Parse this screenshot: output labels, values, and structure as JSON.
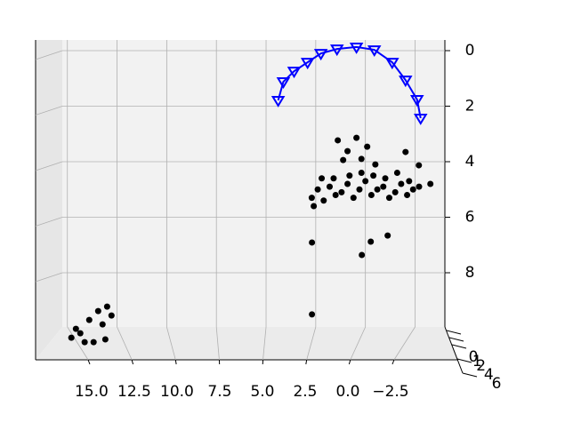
{
  "chart_data": {
    "type": "scatter3d",
    "xlim": [
      16.6,
      -4.0
    ],
    "xticks": [
      {
        "value": 15,
        "label": "15.0"
      },
      {
        "value": 12.5,
        "label": "12.5"
      },
      {
        "value": 10,
        "label": "10.0"
      },
      {
        "value": 7.5,
        "label": "7.5"
      },
      {
        "value": 5,
        "label": "5.0"
      },
      {
        "value": 2.5,
        "label": "2.5"
      },
      {
        "value": 0,
        "label": "0.0"
      },
      {
        "value": -2.5,
        "label": "−2.5"
      }
    ],
    "ylim": [
      -0.4,
      11.0
    ],
    "yticks": [
      0,
      2,
      4,
      6,
      8
    ],
    "zlim": [
      0,
      6
    ],
    "zticks": [
      0,
      1,
      2,
      4,
      6
    ],
    "grid": true,
    "series": [
      {
        "color": "#0000ff",
        "style": "line",
        "x": [
          4.39,
          4.13,
          3.59,
          2.91,
          2.24,
          1.43,
          0.45,
          -0.45,
          -1.35,
          -2.02,
          -2.6,
          -2.78
        ],
        "values": [
          1.79,
          1.12,
          0.74,
          0.42,
          0.1,
          -0.06,
          -0.13,
          -0.03,
          0.42,
          1.06,
          1.76,
          2.43
        ]
      },
      {
        "color": "#000000",
        "style": "scatter",
        "x": [
          2.7,
          2.4,
          2.1,
          1.8,
          1.5,
          1.2,
          0.9,
          0.6,
          0.3,
          0,
          -0.3,
          -0.6,
          -0.9,
          -1.2,
          -1.5,
          -1.8,
          -2.1,
          -2.4,
          -2.7,
          1.6,
          0.8,
          0.2,
          -0.4,
          -1.0,
          -1.6,
          -2.2,
          2.2,
          2.6,
          0.45,
          0.9,
          -0.09,
          1.12,
          0.2,
          -0.5,
          1.39,
          -2.02,
          -2.69,
          -3.27,
          2.69,
          2.69,
          -0.27,
          -1.12,
          0.18,
          14.8,
          14.35,
          13.9,
          13.45,
          13.0,
          13.23,
          13.68,
          14.13,
          12.78,
          14.57,
          13.09
        ],
        "values": [
          5.3,
          5.0,
          5.4,
          4.9,
          5.2,
          5.1,
          4.8,
          5.3,
          5.0,
          4.7,
          5.2,
          5.0,
          4.9,
          5.3,
          5.1,
          4.8,
          5.2,
          5.0,
          4.9,
          4.6,
          4.5,
          4.4,
          4.5,
          4.6,
          4.4,
          4.7,
          4.6,
          5.6,
          3.14,
          3.62,
          3.46,
          3.94,
          3.9,
          4.1,
          3.23,
          3.65,
          4.13,
          4.8,
          6.91,
          9.5,
          6.88,
          6.66,
          7.36,
          10.34,
          10.18,
          9.7,
          9.38,
          9.22,
          9.86,
          10.5,
          10.5,
          9.54,
          10.02,
          10.4
        ]
      }
    ]
  }
}
